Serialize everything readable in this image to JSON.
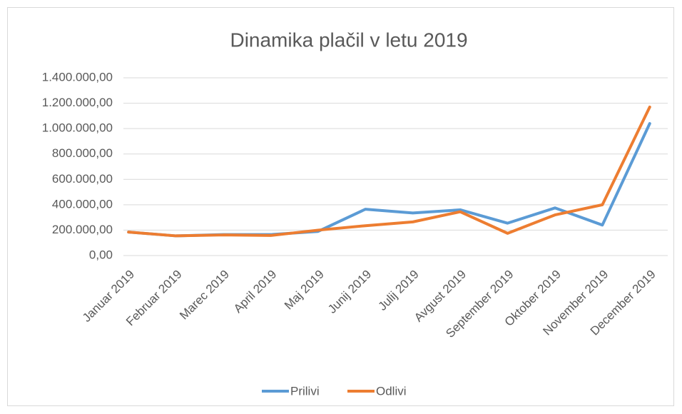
{
  "chart_data": {
    "type": "line",
    "title": "Dinamika plačil v letu 2019",
    "categories": [
      "Januar 2019",
      "Februar 2019",
      "Marec 2019",
      "April 2019",
      "Maj 2019",
      "Junij 2019",
      "Julij 2019",
      "Avgust 2019",
      "September 2019",
      "Oktober 2019",
      "November 2019",
      "December 2019"
    ],
    "series": [
      {
        "name": "Prilivi",
        "color": "#5b9bd5",
        "values": [
          185000,
          155000,
          165000,
          165000,
          190000,
          365000,
          335000,
          360000,
          255000,
          375000,
          240000,
          1040000
        ]
      },
      {
        "name": "Odlivi",
        "color": "#ed7d31",
        "values": [
          185000,
          155000,
          162000,
          158000,
          200000,
          235000,
          265000,
          345000,
          175000,
          320000,
          400000,
          1170000
        ]
      }
    ],
    "ylim": [
      0,
      1400000
    ],
    "yticks": [
      {
        "value": 0,
        "label": "0,00"
      },
      {
        "value": 200000,
        "label": "200.000,00"
      },
      {
        "value": 400000,
        "label": "400.000,00"
      },
      {
        "value": 600000,
        "label": "600.000,00"
      },
      {
        "value": 800000,
        "label": "800.000,00"
      },
      {
        "value": 1000000,
        "label": "1.000.000,00"
      },
      {
        "value": 1200000,
        "label": "1.200.000,00"
      },
      {
        "value": 1400000,
        "label": "1.400.000,00"
      }
    ],
    "grid": true,
    "legend": "bottom"
  }
}
